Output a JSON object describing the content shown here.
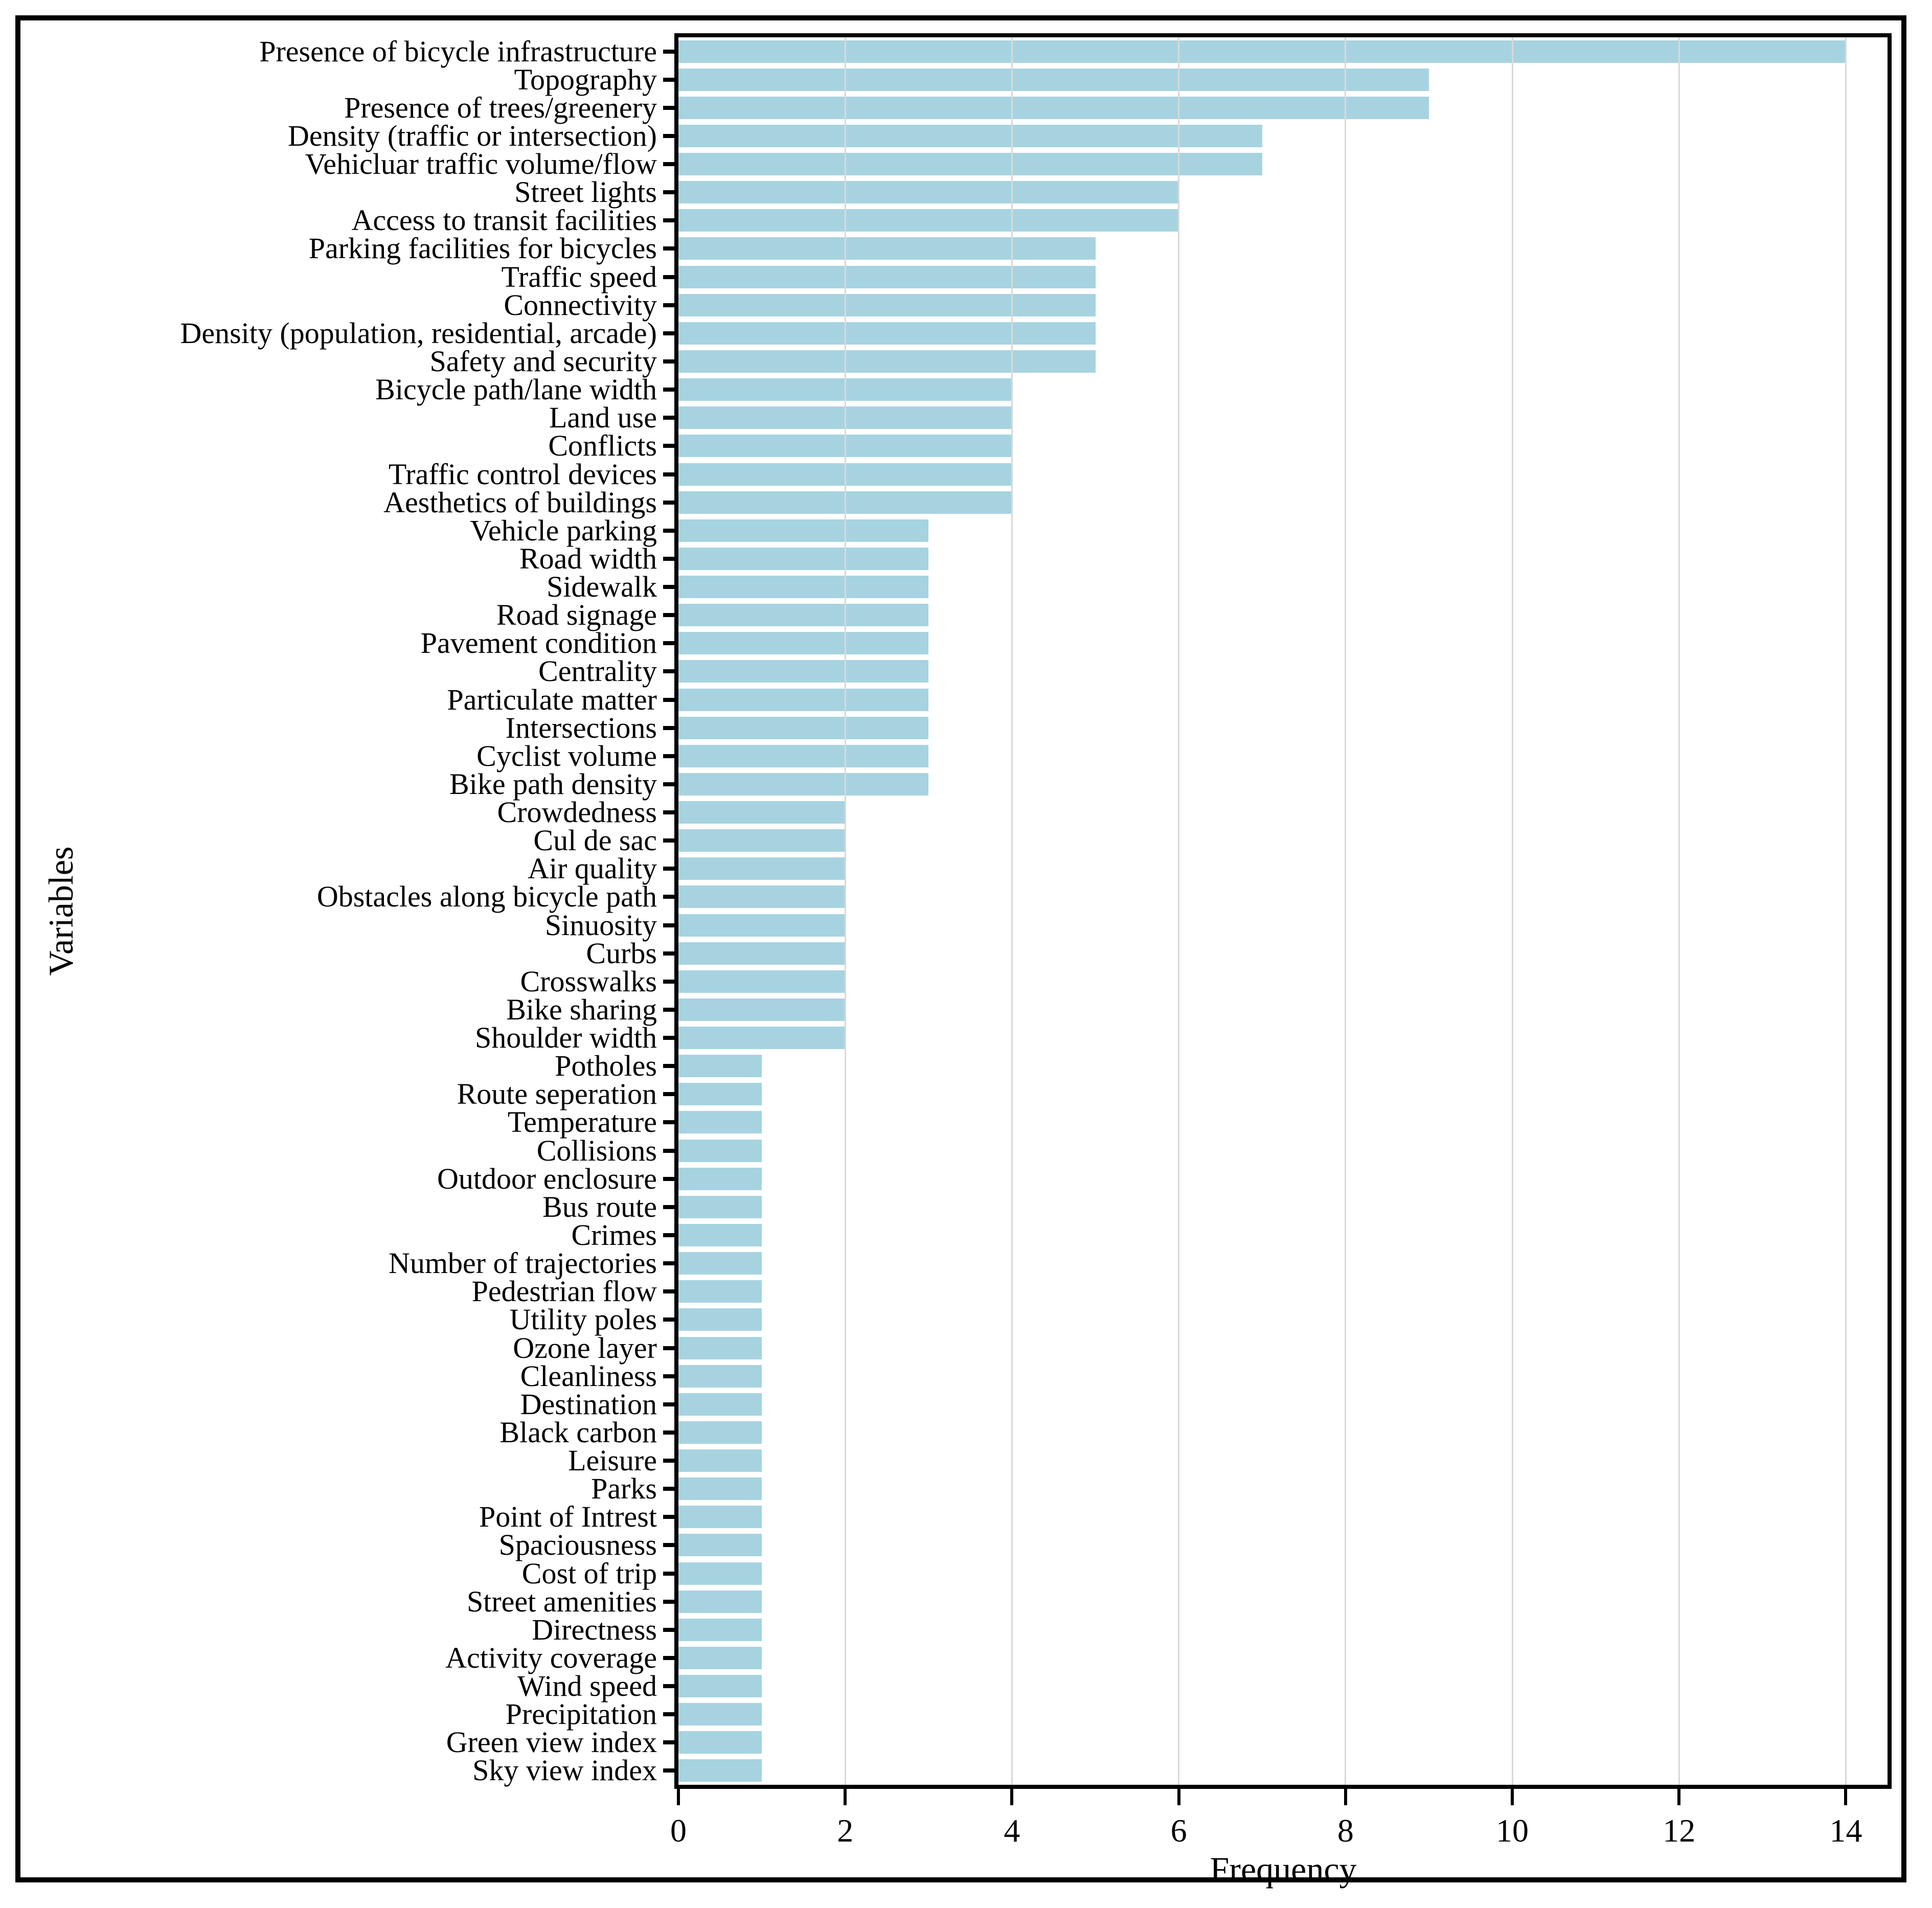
{
  "chart_data": {
    "type": "bar",
    "orientation": "horizontal",
    "title": "",
    "xlabel": "Frequency",
    "ylabel": "Variables",
    "x_ticks": [
      0,
      2,
      4,
      6,
      8,
      10,
      12,
      14
    ],
    "xlim": [
      0,
      14.5
    ],
    "grid": true,
    "legend_position": "none",
    "bar_color": "#a7d3e0",
    "grid_color": "#d9d9d9",
    "categories": [
      "Presence of bicycle infrastructure",
      "Topography",
      "Presence of trees/greenery",
      "Density (traffic or intersection)",
      "Vehicluar traffic volume/flow",
      "Street lights",
      "Access to transit facilities",
      "Parking facilities for bicycles",
      "Traffic speed",
      "Connectivity",
      "Density (population, residential, arcade)",
      "Safety and security",
      "Bicycle path/lane width",
      "Land use",
      "Conflicts",
      "Traffic control devices",
      "Aesthetics of buildings",
      "Vehicle parking",
      "Road width",
      "Sidewalk",
      "Road signage",
      "Pavement condition",
      "Centrality",
      "Particulate matter",
      "Intersections",
      "Cyclist volume",
      "Bike path density",
      "Crowdedness",
      "Cul de sac",
      "Air quality",
      "Obstacles along bicycle path",
      "Sinuosity",
      "Curbs",
      "Crosswalks",
      "Bike sharing",
      "Shoulder width",
      "Potholes",
      "Route seperation",
      "Temperature",
      "Collisions",
      "Outdoor enclosure",
      "Bus route",
      "Crimes",
      "Number of trajectories",
      "Pedestrian flow",
      "Utility poles",
      "Ozone layer",
      "Cleanliness",
      "Destination",
      "Black carbon",
      "Leisure",
      "Parks",
      "Point of Intrest",
      "Spaciousness",
      "Cost of trip",
      "Street amenities",
      "Directness",
      "Activity coverage",
      "Wind speed",
      "Precipitation",
      "Green view index",
      "Sky view index"
    ],
    "values": [
      14,
      9,
      9,
      7,
      7,
      6,
      6,
      5,
      5,
      5,
      5,
      5,
      4,
      4,
      4,
      4,
      4,
      3,
      3,
      3,
      3,
      3,
      3,
      3,
      3,
      3,
      3,
      2,
      2,
      2,
      2,
      2,
      2,
      2,
      2,
      2,
      1,
      1,
      1,
      1,
      1,
      1,
      1,
      1,
      1,
      1,
      1,
      1,
      1,
      1,
      1,
      1,
      1,
      1,
      1,
      1,
      1,
      1,
      1,
      1,
      1,
      1
    ]
  }
}
